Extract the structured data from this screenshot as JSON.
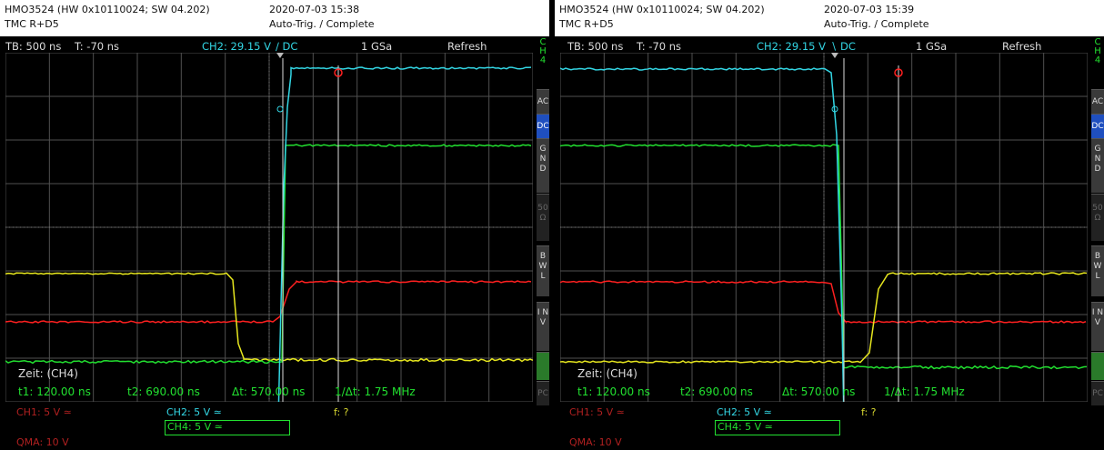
{
  "screens": [
    {
      "device": "HMO3524 (HW 0x10110024; SW 04.202)",
      "probe": "TMC R+D5",
      "datetime": "2020-07-03 15:38",
      "status": "Auto-Trig. / Complete",
      "tb": "TB: 500 ns",
      "t": "T: -70 ns",
      "trigger": "CH2: 29.15 V",
      "trigger_slope": "∕ DC",
      "rate": "1 GSa",
      "mode": "Refresh",
      "zeit": "Zeit: (CH4)",
      "t1": "t1: 120.00 ns",
      "t2": "t2: 690.00 ns",
      "dt": "Δt: 570.00 ns",
      "inv_dt": "1/Δt: 1.75 MHz",
      "ch1": "CH1: 5 V ≃",
      "ch2": "CH2: 5 V ≃",
      "ch4": "CH4: 5 V ≃",
      "f": "f: ?",
      "qma": "QMA: 10 V",
      "edge": "rising"
    },
    {
      "device": "HMO3524 (HW 0x10110024; SW 04.202)",
      "probe": "TMC R+D5",
      "datetime": "2020-07-03 15:39",
      "status": "Auto-Trig. / Complete",
      "tb": "TB: 500 ns",
      "t": "T: -70 ns",
      "trigger": "CH2: 29.15 V",
      "trigger_slope": "∖ DC",
      "rate": "1 GSa",
      "mode": "Refresh",
      "zeit": "Zeit: (CH4)",
      "t1": "t1: 120.00 ns",
      "t2": "t2: 690.00 ns",
      "dt": "Δt: 570.00 ns",
      "inv_dt": "1/Δt: 1.75 MHz",
      "ch1": "CH1: 5 V ≃",
      "ch2": "CH2: 5 V ≃",
      "ch4": "CH4: 5 V ≃",
      "f": "f: ?",
      "qma": "QMA: 10 V",
      "edge": "falling"
    }
  ],
  "side_menu": {
    "ch4_label": "C H 4",
    "items": [
      "AC",
      "DC",
      "G N D",
      "50 Ω",
      "B W L",
      "I N V",
      "",
      "PC"
    ]
  },
  "colors": {
    "ch1": "#e6e61e",
    "ch2": "#33d6e4",
    "ch4": "#22e030",
    "math": "#ff2020",
    "grid": "#505050"
  }
}
